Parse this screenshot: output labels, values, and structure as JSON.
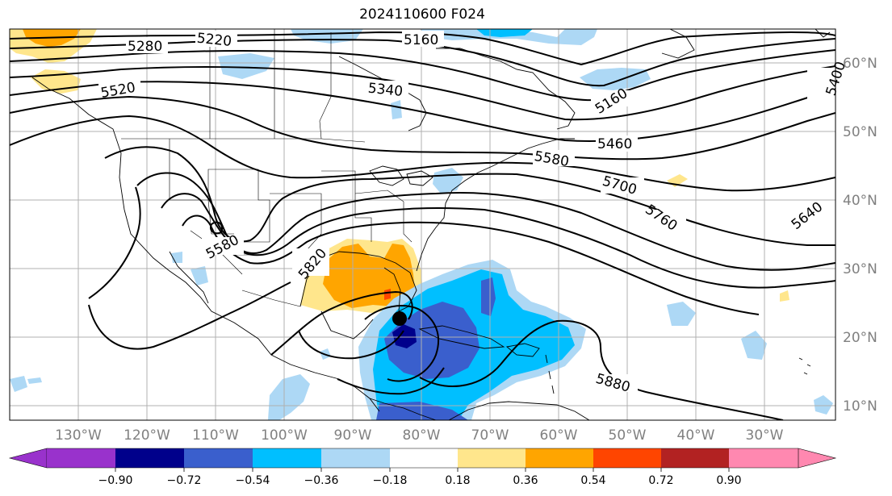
{
  "title": "2024110600 F024",
  "map": {
    "lat_labels": [
      "60°N",
      "50°N",
      "40°N",
      "30°N",
      "20°N",
      "10°N"
    ],
    "lon_labels": [
      "130°W",
      "120°W",
      "110°W",
      "100°W",
      "90°W",
      "80°W",
      "70°W",
      "60°W",
      "50°W",
      "40°W",
      "30°W"
    ],
    "contour_labels": [
      "5280",
      "5220",
      "5160",
      "5520",
      "5340",
      "5160",
      "5400",
      "5460",
      "5580",
      "5700",
      "5760",
      "5640",
      "5580",
      "5820",
      "5880"
    ],
    "colors": {
      "neg_090": "#9932cc",
      "neg_072": "#00008b",
      "neg_054": "#3a5fcd",
      "neg_036": "#00bfff",
      "neg_018": "#add8f5",
      "zero": "#ffffff",
      "pos_018": "#ffe68c",
      "pos_036": "#ffa500",
      "pos_054": "#ff4500",
      "pos_072": "#b22222",
      "pos_090": "#ff88b0"
    },
    "marker": "storm-center-dot"
  },
  "colorbar": {
    "ticks": [
      "−0.90",
      "−0.72",
      "−0.54",
      "−0.36",
      "−0.18",
      "0.18",
      "0.36",
      "0.54",
      "0.72",
      "0.90"
    ]
  }
}
